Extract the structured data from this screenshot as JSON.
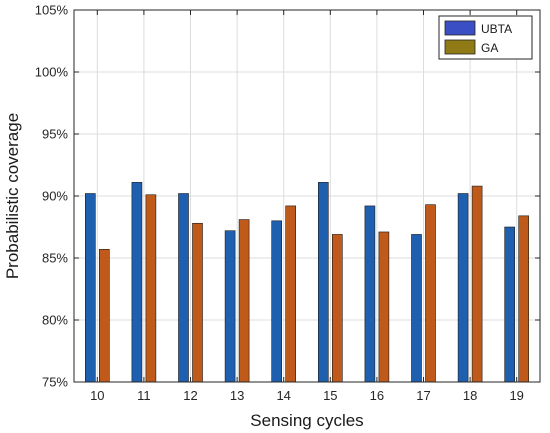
{
  "chart_data": {
    "type": "bar",
    "xlabel": "Sensing cycles",
    "ylabel": "Probabilistic coverage",
    "categories": [
      "10",
      "11",
      "12",
      "13",
      "14",
      "15",
      "16",
      "17",
      "18",
      "19"
    ],
    "series": [
      {
        "name": "UBTA",
        "color": "#1f5fb0",
        "values": [
          90.2,
          91.1,
          90.2,
          87.2,
          88.0,
          91.1,
          89.2,
          86.9,
          90.2,
          87.5
        ]
      },
      {
        "name": "GA",
        "color": "#c05a1a",
        "values": [
          85.7,
          90.1,
          87.8,
          88.1,
          89.2,
          86.9,
          87.1,
          89.3,
          90.8,
          88.4
        ]
      }
    ],
    "ylim": [
      75,
      105
    ],
    "yticks": [
      "75%",
      "80%",
      "85%",
      "90%",
      "95%",
      "100%",
      "105%"
    ],
    "grid": true,
    "legend": "top-right",
    "legend_colors": {
      "UBTA": "#3a4fc4",
      "GA": "#8f7a16"
    }
  }
}
